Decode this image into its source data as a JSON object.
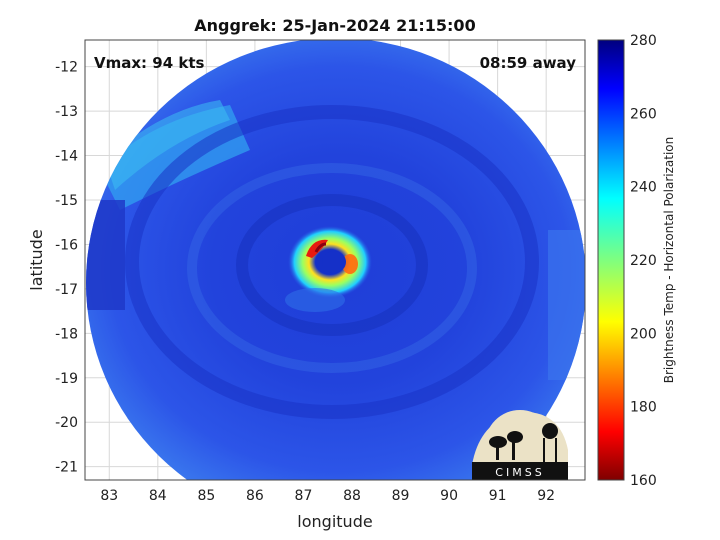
{
  "chart_data": {
    "type": "heatmap",
    "title": "Anggrek: 25-Jan-2024 21:15:00",
    "xlabel": "longitude",
    "ylabel": "latitude",
    "xlim": [
      82.5,
      92.8
    ],
    "ylim": [
      -21.3,
      -11.4
    ],
    "xticks": [
      "83",
      "84",
      "85",
      "86",
      "87",
      "88",
      "89",
      "90",
      "91",
      "92"
    ],
    "yticks": [
      "-12",
      "-13",
      "-14",
      "-15",
      "-16",
      "-17",
      "-18",
      "-19",
      "-20",
      "-21"
    ],
    "grid": true,
    "annotations": {
      "left": "Vmax: 94 kts",
      "right": "08:59 away"
    },
    "storm_center": {
      "lon": 87.9,
      "lat": -16.4
    },
    "colorbar": {
      "label": "Brightness Temp - Horizontal Polarization",
      "ticks": [
        "280",
        "260",
        "240",
        "220",
        "200",
        "180",
        "160"
      ],
      "range": [
        160,
        280
      ],
      "colormap": "jet"
    },
    "logo_text": "CIMSS"
  }
}
